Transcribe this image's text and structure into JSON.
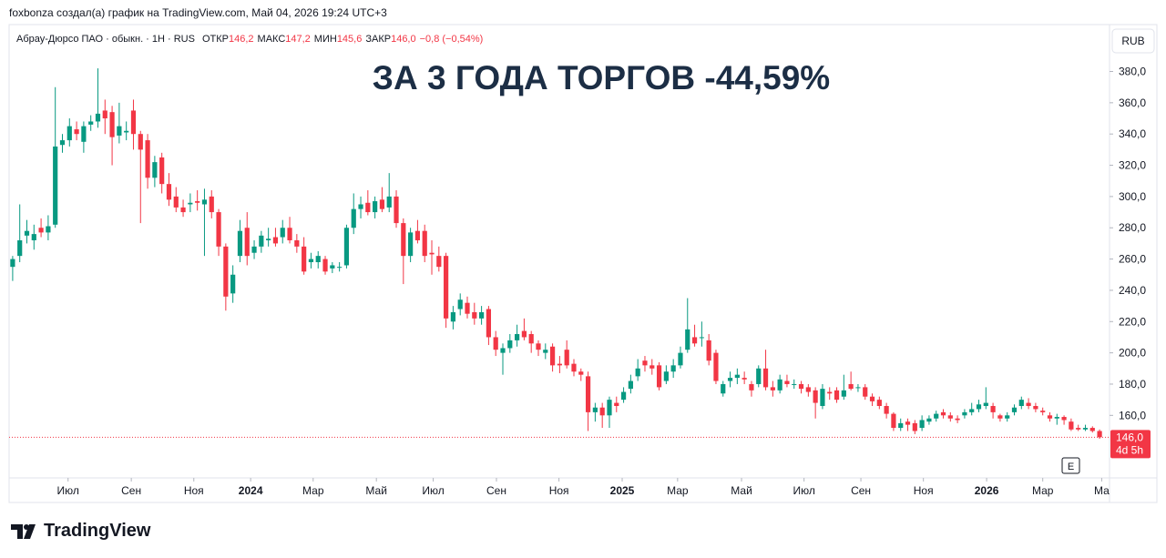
{
  "header": {
    "credit": "foxbonza создал(а) график на TradingView.com, Май 04, 2026 19:24 UTC+3",
    "brand": "TradingView"
  },
  "chart_data": {
    "type": "candlestick",
    "title": "ЗА 3 ГОДА ТОРГОВ -44,59%",
    "symbol": "Абрау-Дюрсо ПАО · обыкн. · 1H · RUS",
    "ohlc_names": [
      "ОТКР",
      "МАКС",
      "МИН",
      "ЗАКР"
    ],
    "ohlc_values": [
      "146,2",
      "147,2",
      "145,6",
      "146,0"
    ],
    "change": "−0,8 (−0,54%)",
    "currency": "RUB",
    "earnings_marker": "E",
    "up_color": "#089981",
    "down_color": "#f23645",
    "grid": false,
    "last_price": {
      "value": 146,
      "label": "146,0"
    },
    "countdown": "4d 5h",
    "xlim": [
      -0.5,
      154.4
    ],
    "xticks": [
      {
        "value": 7.8,
        "label": "Июл"
      },
      {
        "value": 16.7,
        "label": "Сен"
      },
      {
        "value": 25.5,
        "label": "Ноя"
      },
      {
        "value": 33.5,
        "label": "2024"
      },
      {
        "value": 42.3,
        "label": "Мар"
      },
      {
        "value": 51.2,
        "label": "Май"
      },
      {
        "value": 59.2,
        "label": "Июл"
      },
      {
        "value": 68.1,
        "label": "Сен"
      },
      {
        "value": 76.9,
        "label": "Ноя"
      },
      {
        "value": 85.8,
        "label": "2025"
      },
      {
        "value": 93.6,
        "label": "Мар"
      },
      {
        "value": 102.6,
        "label": "Май"
      },
      {
        "value": 111.4,
        "label": "Июл"
      },
      {
        "value": 119.4,
        "label": "Сен"
      },
      {
        "value": 128.2,
        "label": "Ноя"
      },
      {
        "value": 137.1,
        "label": "2026"
      },
      {
        "value": 145,
        "label": "Мар"
      },
      {
        "value": 153.3,
        "label": "Ма"
      }
    ],
    "ylim": [
      120,
      410
    ],
    "yticks": [
      {
        "value": 160,
        "label": "160,0"
      },
      {
        "value": 180,
        "label": "180,0"
      },
      {
        "value": 200,
        "label": "200,0"
      },
      {
        "value": 220,
        "label": "220,0"
      },
      {
        "value": 240,
        "label": "240,0"
      },
      {
        "value": 260,
        "label": "260,0"
      },
      {
        "value": 280,
        "label": "280,0"
      },
      {
        "value": 300,
        "label": "300,0"
      },
      {
        "value": 320,
        "label": "320,0"
      },
      {
        "value": 340,
        "label": "340,0"
      },
      {
        "value": 360,
        "label": "360,0"
      },
      {
        "value": 380,
        "label": "380,0"
      }
    ],
    "candles": [
      [
        255,
        262,
        246,
        260
      ],
      [
        262,
        295,
        258,
        272
      ],
      [
        275,
        285,
        270,
        278
      ],
      [
        272,
        282,
        266,
        276
      ],
      [
        280,
        286,
        274,
        277
      ],
      [
        277,
        288,
        272,
        281
      ],
      [
        282,
        370,
        280,
        332
      ],
      [
        333,
        340,
        328,
        336
      ],
      [
        336,
        350,
        332,
        345
      ],
      [
        343,
        348,
        336,
        340
      ],
      [
        335,
        348,
        328,
        345
      ],
      [
        346,
        352,
        342,
        348
      ],
      [
        348,
        382,
        344,
        353
      ],
      [
        355,
        362,
        340,
        350
      ],
      [
        354,
        358,
        320,
        338
      ],
      [
        339,
        360,
        334,
        345
      ],
      [
        341,
        348,
        336,
        342
      ],
      [
        355,
        362,
        330,
        340
      ],
      [
        340,
        342,
        283,
        330
      ],
      [
        336,
        340,
        305,
        312
      ],
      [
        312,
        326,
        306,
        322
      ],
      [
        325,
        328,
        302,
        308
      ],
      [
        308,
        315,
        294,
        298
      ],
      [
        300,
        306,
        290,
        293
      ],
      [
        293,
        298,
        287,
        290
      ],
      [
        295,
        302,
        290,
        296
      ],
      [
        297,
        304,
        291,
        296
      ],
      [
        295,
        305,
        262,
        298
      ],
      [
        300,
        304,
        286,
        290
      ],
      [
        290,
        292,
        262,
        268
      ],
      [
        268,
        270,
        227,
        236
      ],
      [
        238,
        256,
        232,
        250
      ],
      [
        262,
        285,
        258,
        278
      ],
      [
        280,
        290,
        256,
        262
      ],
      [
        264,
        272,
        260,
        268
      ],
      [
        268,
        278,
        264,
        275
      ],
      [
        272,
        280,
        268,
        273
      ],
      [
        274,
        280,
        268,
        270
      ],
      [
        274,
        285,
        270,
        280
      ],
      [
        280,
        287,
        270,
        272
      ],
      [
        272,
        276,
        264,
        268
      ],
      [
        268,
        274,
        250,
        252
      ],
      [
        258,
        264,
        254,
        260
      ],
      [
        258,
        265,
        254,
        262
      ],
      [
        260,
        262,
        250,
        252
      ],
      [
        254,
        258,
        251,
        256
      ],
      [
        255,
        258,
        252,
        255
      ],
      [
        256,
        282,
        254,
        280
      ],
      [
        280,
        302,
        276,
        292
      ],
      [
        292,
        300,
        286,
        295
      ],
      [
        296,
        304,
        288,
        290
      ],
      [
        290,
        300,
        286,
        297
      ],
      [
        298,
        306,
        290,
        292
      ],
      [
        293,
        315,
        290,
        300
      ],
      [
        300,
        304,
        280,
        283
      ],
      [
        283,
        286,
        244,
        262
      ],
      [
        262,
        280,
        258,
        277
      ],
      [
        278,
        285,
        270,
        272
      ],
      [
        278,
        282,
        258,
        262
      ],
      [
        264,
        272,
        250,
        263
      ],
      [
        262,
        268,
        252,
        255
      ],
      [
        262,
        264,
        216,
        222
      ],
      [
        220,
        230,
        215,
        226
      ],
      [
        228,
        238,
        224,
        234
      ],
      [
        232,
        236,
        222,
        225
      ],
      [
        226,
        232,
        218,
        222
      ],
      [
        222,
        230,
        218,
        226
      ],
      [
        228,
        230,
        205,
        210
      ],
      [
        210,
        214,
        198,
        202
      ],
      [
        200,
        206,
        186,
        203
      ],
      [
        203,
        212,
        200,
        208
      ],
      [
        208,
        218,
        204,
        212
      ],
      [
        214,
        222,
        208,
        210
      ],
      [
        212,
        214,
        200,
        206
      ],
      [
        206,
        208,
        198,
        202
      ],
      [
        200,
        206,
        196,
        202
      ],
      [
        204,
        206,
        188,
        192
      ],
      [
        193,
        198,
        187,
        192
      ],
      [
        202,
        208,
        190,
        192
      ],
      [
        193,
        196,
        185,
        188
      ],
      [
        188,
        190,
        182,
        186
      ],
      [
        185,
        188,
        150,
        162
      ],
      [
        162,
        168,
        156,
        165
      ],
      [
        165,
        168,
        152,
        160
      ],
      [
        160,
        172,
        152,
        170
      ],
      [
        168,
        172,
        162,
        166
      ],
      [
        170,
        178,
        168,
        175
      ],
      [
        177,
        186,
        174,
        182
      ],
      [
        185,
        196,
        182,
        190
      ],
      [
        195,
        198,
        188,
        192
      ],
      [
        192,
        196,
        186,
        190
      ],
      [
        192,
        194,
        176,
        178
      ],
      [
        182,
        192,
        180,
        188
      ],
      [
        188,
        196,
        184,
        192
      ],
      [
        192,
        204,
        190,
        200
      ],
      [
        202,
        235,
        200,
        215
      ],
      [
        210,
        218,
        204,
        206
      ],
      [
        210,
        220,
        204,
        210
      ],
      [
        208,
        212,
        192,
        195
      ],
      [
        200,
        202,
        180,
        182
      ],
      [
        174,
        182,
        172,
        180
      ],
      [
        182,
        188,
        178,
        184
      ],
      [
        184,
        190,
        180,
        186
      ],
      [
        184,
        188,
        180,
        183
      ],
      [
        180,
        182,
        172,
        176
      ],
      [
        180,
        192,
        178,
        190
      ],
      [
        190,
        202,
        176,
        178
      ],
      [
        178,
        182,
        172,
        176
      ],
      [
        176,
        186,
        174,
        183
      ],
      [
        182,
        186,
        178,
        180
      ],
      [
        180,
        183,
        177,
        180
      ],
      [
        180,
        182,
        174,
        177
      ],
      [
        178,
        180,
        172,
        175
      ],
      [
        176,
        178,
        158,
        168
      ],
      [
        166,
        180,
        164,
        177
      ],
      [
        175,
        178,
        170,
        174
      ],
      [
        176,
        178,
        168,
        170
      ],
      [
        172,
        186,
        170,
        176
      ],
      [
        180,
        188,
        176,
        177
      ],
      [
        178,
        180,
        175,
        178
      ],
      [
        178,
        180,
        170,
        172
      ],
      [
        172,
        174,
        166,
        169
      ],
      [
        170,
        172,
        164,
        166
      ],
      [
        166,
        168,
        158,
        161
      ],
      [
        161,
        162,
        150,
        152
      ],
      [
        152,
        158,
        150,
        155
      ],
      [
        156,
        158,
        150,
        154
      ],
      [
        155,
        157,
        148,
        150
      ],
      [
        152,
        160,
        150,
        157
      ],
      [
        156,
        160,
        154,
        158
      ],
      [
        158,
        163,
        156,
        161
      ],
      [
        162,
        164,
        158,
        160
      ],
      [
        160,
        162,
        156,
        158
      ],
      [
        158,
        160,
        155,
        157
      ],
      [
        160,
        164,
        158,
        162
      ],
      [
        162,
        168,
        160,
        164
      ],
      [
        164,
        170,
        162,
        167
      ],
      [
        166,
        178,
        164,
        168
      ],
      [
        166,
        168,
        158,
        162
      ],
      [
        160,
        161,
        156,
        158
      ],
      [
        158,
        162,
        156,
        160
      ],
      [
        162,
        167,
        160,
        165
      ],
      [
        166,
        172,
        164,
        170
      ],
      [
        168,
        171,
        164,
        166
      ],
      [
        166,
        168,
        162,
        164
      ],
      [
        163,
        165,
        160,
        162
      ],
      [
        160,
        162,
        156,
        158
      ],
      [
        158,
        161,
        154,
        159
      ],
      [
        159,
        160,
        154,
        157
      ],
      [
        156,
        158,
        150,
        151
      ],
      [
        152,
        154,
        150,
        151
      ],
      [
        151,
        154,
        150,
        152
      ],
      [
        152,
        153,
        149,
        150
      ],
      [
        150,
        151,
        145,
        146
      ]
    ]
  }
}
